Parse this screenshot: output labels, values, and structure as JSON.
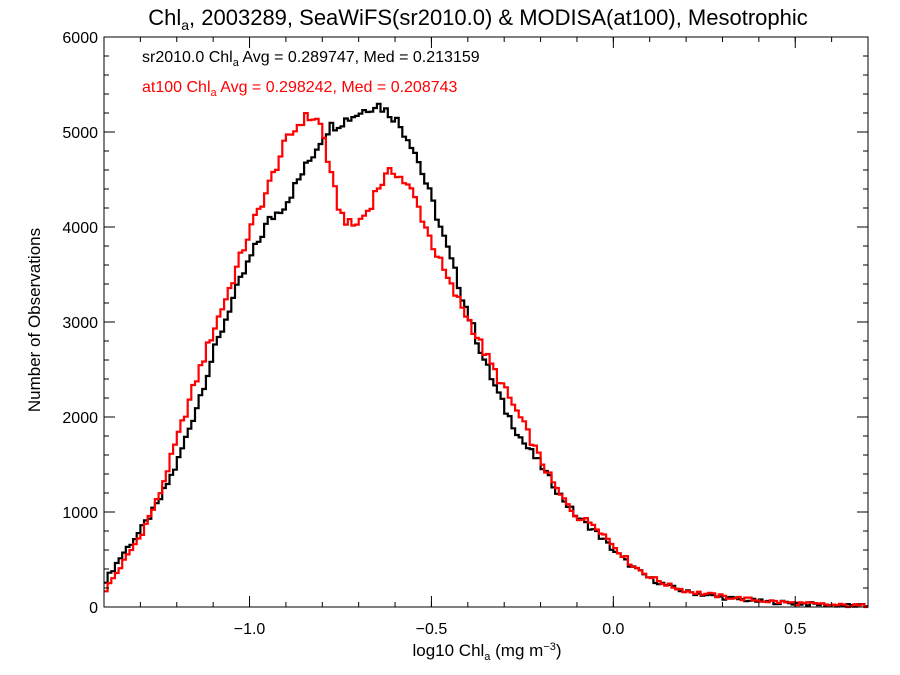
{
  "chart_data": {
    "type": "line",
    "title": {
      "prefix": "Chl",
      "sub": "a",
      "rest": ", 2003289, SeaWiFS(sr2010.0) & MODISA(at100), Mesotrophic"
    },
    "xlabel": {
      "prefix": "log10 Chl",
      "sub": "a",
      "mid": " (mg m",
      "sup": "−3",
      "end": ")"
    },
    "ylabel": "Number of Observations",
    "xlim": [
      -1.4,
      0.7
    ],
    "ylim": [
      0,
      6000
    ],
    "x_ticks": [
      {
        "value": -1.0,
        "label": "−1.0"
      },
      {
        "value": -0.5,
        "label": "−0.5"
      },
      {
        "value": 0.0,
        "label": "0.0"
      },
      {
        "value": 0.5,
        "label": "0.5"
      }
    ],
    "x_minor_step": 0.1,
    "y_ticks": [
      {
        "value": 0,
        "label": "0"
      },
      {
        "value": 1000,
        "label": "1000"
      },
      {
        "value": 2000,
        "label": "2000"
      },
      {
        "value": 3000,
        "label": "3000"
      },
      {
        "value": 4000,
        "label": "4000"
      },
      {
        "value": 5000,
        "label": "5000"
      },
      {
        "value": 6000,
        "label": "6000"
      }
    ],
    "y_minor_step": 200,
    "grid": false,
    "legend_position": "top-left",
    "series": [
      {
        "name": "sr2010.0",
        "label": {
          "prefix": "sr2010.0 Chl",
          "sub": "a",
          "rest": " Avg = 0.289747, Med = 0.213159"
        },
        "color": "#000000",
        "x": [
          -1.4,
          -1.35,
          -1.3,
          -1.25,
          -1.2,
          -1.15,
          -1.1,
          -1.05,
          -1.0,
          -0.95,
          -0.9,
          -0.85,
          -0.82,
          -0.8,
          -0.78,
          -0.75,
          -0.7,
          -0.65,
          -0.6,
          -0.55,
          -0.5,
          -0.45,
          -0.4,
          -0.35,
          -0.3,
          -0.25,
          -0.2,
          -0.15,
          -0.1,
          -0.05,
          0.0,
          0.05,
          0.1,
          0.15,
          0.2,
          0.3,
          0.4,
          0.5,
          0.6,
          0.7
        ],
        "y": [
          250,
          550,
          800,
          1100,
          1500,
          2050,
          2650,
          3200,
          3650,
          4050,
          4250,
          4600,
          4800,
          4950,
          5050,
          5100,
          5200,
          5300,
          5150,
          4850,
          4300,
          3700,
          3100,
          2550,
          2100,
          1750,
          1500,
          1200,
          950,
          800,
          600,
          430,
          300,
          220,
          160,
          100,
          60,
          40,
          20,
          10
        ]
      },
      {
        "name": "at100",
        "label": {
          "prefix": "at100 Chl",
          "sub": "a",
          "rest": " Avg = 0.298242, Med = 0.208743"
        },
        "color": "#ff0000",
        "x": [
          -1.4,
          -1.35,
          -1.3,
          -1.25,
          -1.2,
          -1.15,
          -1.1,
          -1.05,
          -1.0,
          -0.95,
          -0.9,
          -0.87,
          -0.85,
          -0.82,
          -0.8,
          -0.78,
          -0.75,
          -0.72,
          -0.7,
          -0.67,
          -0.65,
          -0.62,
          -0.6,
          -0.55,
          -0.5,
          -0.45,
          -0.4,
          -0.35,
          -0.3,
          -0.25,
          -0.2,
          -0.15,
          -0.1,
          -0.05,
          0.0,
          0.05,
          0.1,
          0.15,
          0.2,
          0.3,
          0.4,
          0.5,
          0.6,
          0.7
        ],
        "y": [
          150,
          450,
          750,
          1150,
          1750,
          2350,
          2900,
          3400,
          3950,
          4400,
          4900,
          5050,
          5150,
          5150,
          5050,
          4600,
          4150,
          4000,
          4050,
          4200,
          4400,
          4550,
          4600,
          4350,
          3850,
          3400,
          3050,
          2650,
          2300,
          1950,
          1550,
          1200,
          950,
          870,
          650,
          450,
          320,
          230,
          170,
          110,
          70,
          40,
          20,
          10
        ]
      }
    ]
  }
}
